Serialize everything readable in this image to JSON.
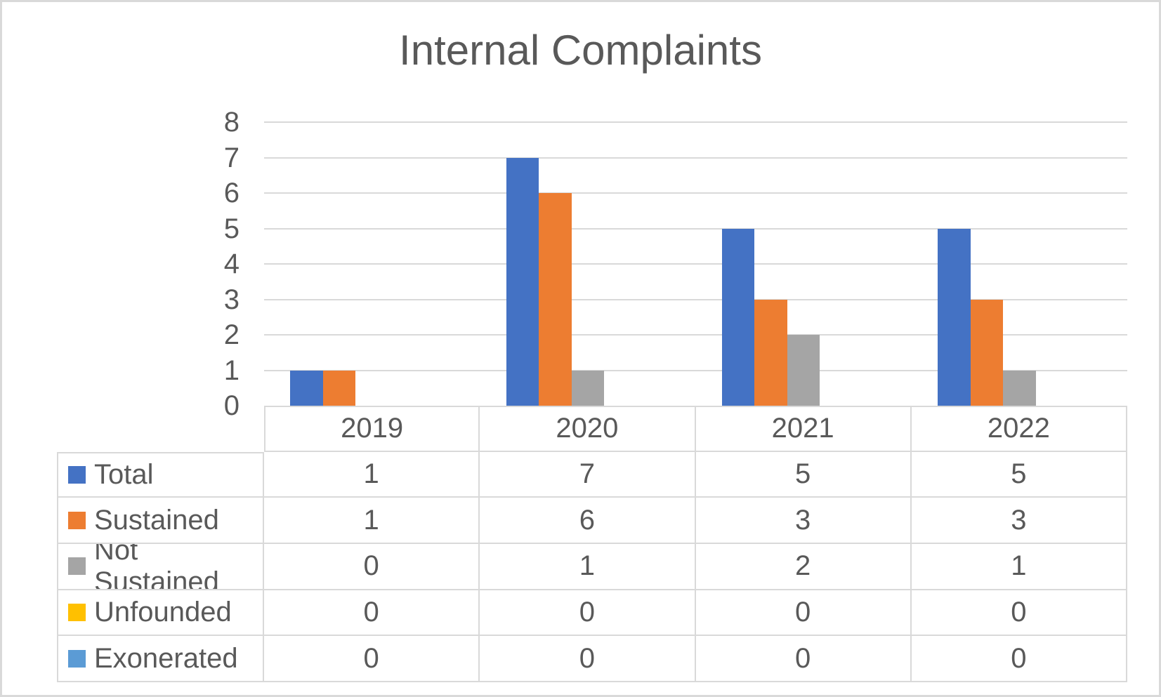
{
  "title": "Internal Complaints",
  "colors": {
    "grid": "#d9d9d9",
    "text": "#595959",
    "border": "#d9d9d9"
  },
  "chart_data": {
    "type": "bar",
    "title": "Internal Complaints",
    "categories": [
      "2019",
      "2020",
      "2021",
      "2022"
    ],
    "series": [
      {
        "name": "Total",
        "color": "#4472C4",
        "values": [
          1,
          7,
          5,
          5
        ]
      },
      {
        "name": "Sustained",
        "color": "#ED7D31",
        "values": [
          1,
          6,
          3,
          3
        ]
      },
      {
        "name": "Not Sustained",
        "color": "#A5A5A5",
        "values": [
          0,
          1,
          2,
          1
        ]
      },
      {
        "name": "Unfounded",
        "color": "#FFC000",
        "values": [
          0,
          0,
          0,
          0
        ]
      },
      {
        "name": "Exonerated",
        "color": "#5B9BD5",
        "values": [
          0,
          0,
          0,
          0
        ]
      }
    ],
    "ylim": [
      0,
      8
    ],
    "ytick_interval": 1,
    "yticks": [
      "0",
      "1",
      "2",
      "3",
      "4",
      "5",
      "6",
      "7",
      "8"
    ],
    "grid": true,
    "legend_position": "data-table-left",
    "data_table": true
  }
}
